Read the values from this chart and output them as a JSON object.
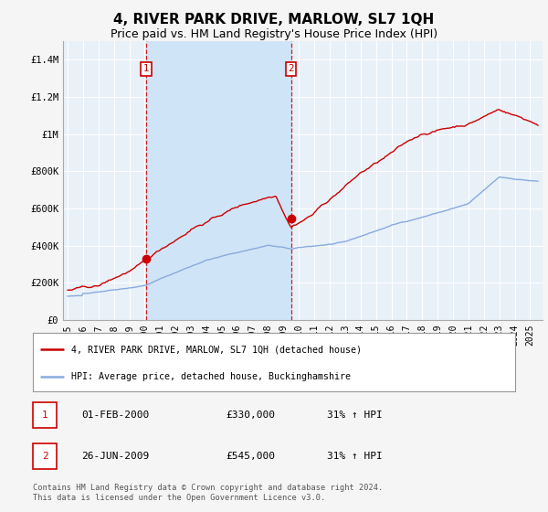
{
  "title": "4, RIVER PARK DRIVE, MARLOW, SL7 1QH",
  "subtitle": "Price paid vs. HM Land Registry's House Price Index (HPI)",
  "title_fontsize": 11,
  "subtitle_fontsize": 9,
  "ylabel_ticks": [
    "£0",
    "£200K",
    "£400K",
    "£600K",
    "£800K",
    "£1M",
    "£1.2M",
    "£1.4M"
  ],
  "ytick_values": [
    0,
    200000,
    400000,
    600000,
    800000,
    1000000,
    1200000,
    1400000
  ],
  "ylim": [
    0,
    1500000
  ],
  "xlim_start": 1994.7,
  "xlim_end": 2025.8,
  "background_color": "#f5f5f5",
  "plot_bg_color": "#e8f0f8",
  "shade_color": "#d0e4f7",
  "grid_color": "#ffffff",
  "red_line_color": "#cc0000",
  "blue_line_color": "#88aadd",
  "marker1_x": 2000.083,
  "marker1_y": 330000,
  "marker2_x": 2009.483,
  "marker2_y": 545000,
  "vline1_x": 2000.083,
  "vline2_x": 2009.483,
  "legend_red_label": "4, RIVER PARK DRIVE, MARLOW, SL7 1QH (detached house)",
  "legend_blue_label": "HPI: Average price, detached house, Buckinghamshire",
  "table_rows": [
    {
      "num": "1",
      "date": "01-FEB-2000",
      "price": "£330,000",
      "hpi": "31% ↑ HPI"
    },
    {
      "num": "2",
      "date": "26-JUN-2009",
      "price": "£545,000",
      "hpi": "31% ↑ HPI"
    }
  ],
  "footer_text": "Contains HM Land Registry data © Crown copyright and database right 2024.\nThis data is licensed under the Open Government Licence v3.0.",
  "xtick_years": [
    1995,
    1996,
    1997,
    1998,
    1999,
    2000,
    2001,
    2002,
    2003,
    2004,
    2005,
    2006,
    2007,
    2008,
    2009,
    2010,
    2011,
    2012,
    2013,
    2014,
    2015,
    2016,
    2017,
    2018,
    2019,
    2020,
    2021,
    2022,
    2023,
    2024,
    2025
  ]
}
